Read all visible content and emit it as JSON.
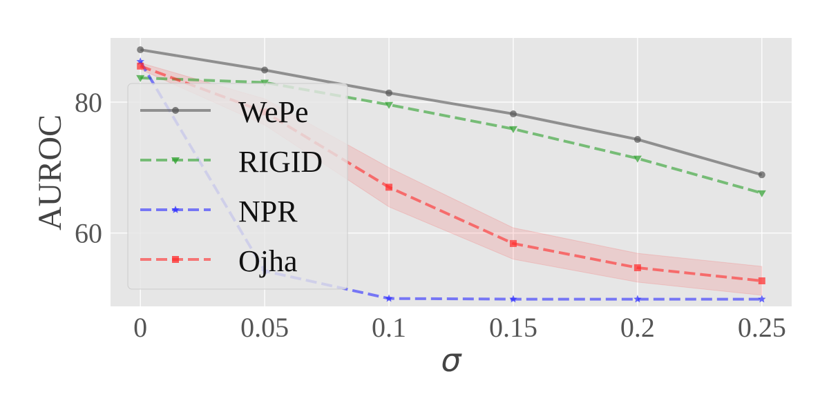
{
  "chart_data": {
    "type": "line",
    "title": "",
    "xlabel": "σ",
    "ylabel": "AUROC",
    "x": [
      0,
      0.05,
      0.1,
      0.15,
      0.2,
      0.25
    ],
    "x_tick_labels": [
      "0",
      "0.05",
      "0.1",
      "0.15",
      "0.2",
      "0.25"
    ],
    "yticks": [
      60,
      80
    ],
    "y_tick_labels": [
      "60",
      "80"
    ],
    "xlim": [
      -0.012,
      0.262
    ],
    "ylim": [
      48.8,
      89.8
    ],
    "grid": true,
    "legend_position": "upper-left",
    "series": [
      {
        "name": "WePe",
        "values": [
          88.0,
          84.9,
          81.4,
          78.2,
          74.3,
          68.9
        ],
        "color": "#555555",
        "linestyle": "solid",
        "marker": "circle"
      },
      {
        "name": "RIGID",
        "values": [
          83.7,
          83.0,
          79.6,
          75.9,
          71.4,
          66.1
        ],
        "color": "#2ca02c",
        "linestyle": "dashed",
        "marker": "triangle-down"
      },
      {
        "name": "NPR",
        "values": [
          86.2,
          54.2,
          50.0,
          49.9,
          49.9,
          49.9
        ],
        "color": "#2b2bff",
        "linestyle": "dashed",
        "marker": "star"
      },
      {
        "name": "Ojha",
        "values": [
          85.5,
          78.5,
          67.0,
          58.4,
          54.7,
          52.7
        ],
        "lower": [
          85.0,
          76.5,
          64.0,
          56.0,
          52.5,
          50.5
        ],
        "upper": [
          86.0,
          80.5,
          70.0,
          60.8,
          56.9,
          54.9
        ],
        "color": "#ff2a2a",
        "linestyle": "dashed",
        "marker": "square"
      }
    ]
  }
}
